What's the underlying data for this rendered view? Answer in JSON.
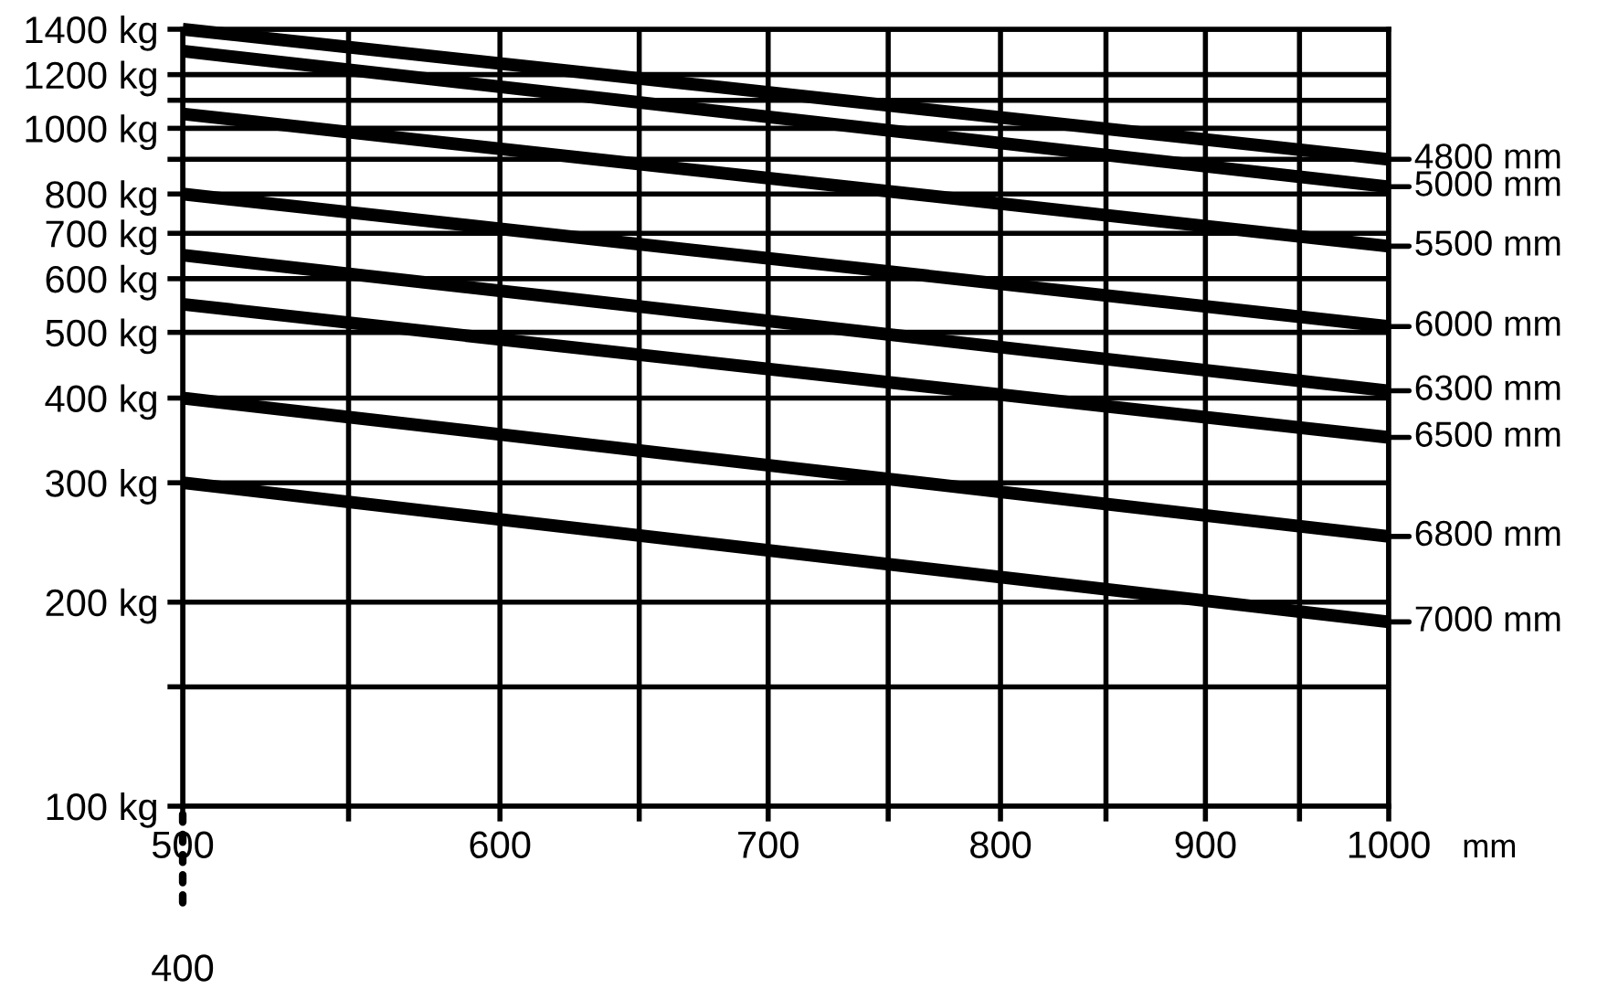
{
  "chart_data": {
    "type": "line",
    "x": [
      500,
      1000
    ],
    "xlim": [
      500,
      1000
    ],
    "xticks": [
      500,
      {
        "value": 550,
        "label": null
      },
      600,
      {
        "value": 650,
        "label": null
      },
      700,
      {
        "value": 750,
        "label": null
      },
      800,
      {
        "value": 850,
        "label": null
      },
      900,
      {
        "value": 950,
        "label": null
      },
      1000
    ],
    "xlabel": "mm",
    "log": "xy",
    "ylim": [
      100,
      1400
    ],
    "yticks": [
      {
        "value": 100,
        "label": "100 kg"
      },
      {
        "value": 150,
        "label": null
      },
      {
        "value": 200,
        "label": "200 kg"
      },
      {
        "value": 300,
        "label": "300 kg"
      },
      {
        "value": 400,
        "label": "400 kg"
      },
      {
        "value": 500,
        "label": "500 kg"
      },
      {
        "value": 600,
        "label": "600 kg"
      },
      {
        "value": 700,
        "label": "700 kg"
      },
      {
        "value": 800,
        "label": "800 kg"
      },
      {
        "value": 900,
        "label": null
      },
      {
        "value": 1000,
        "label": "1000 kg"
      },
      {
        "value": 1100,
        "label": null
      },
      {
        "value": 1200,
        "label": "1200 kg"
      },
      {
        "value": 1400,
        "label": "1400 kg"
      }
    ],
    "grid": true,
    "legend": "right",
    "marker": "none",
    "line_style": "solid",
    "annotations": [
      "400"
    ],
    "series": [
      {
        "name": "4800 mm",
        "color": "#000000",
        "values": [
          1400,
          900
        ]
      },
      {
        "name": "5000 mm",
        "color": "#000000",
        "values": [
          1300,
          820
        ]
      },
      {
        "name": "5500 mm",
        "color": "#000000",
        "values": [
          1050,
          670
        ]
      },
      {
        "name": "6000 mm",
        "color": "#000000",
        "values": [
          800,
          510
        ]
      },
      {
        "name": "6300 mm",
        "color": "#000000",
        "values": [
          650,
          410
        ]
      },
      {
        "name": "6500 mm",
        "color": "#000000",
        "values": [
          550,
          350
        ]
      },
      {
        "name": "6800 mm",
        "color": "#000000",
        "values": [
          400,
          250
        ]
      },
      {
        "name": "7000 mm",
        "color": "#000000",
        "values": [
          300,
          187
        ]
      }
    ]
  }
}
